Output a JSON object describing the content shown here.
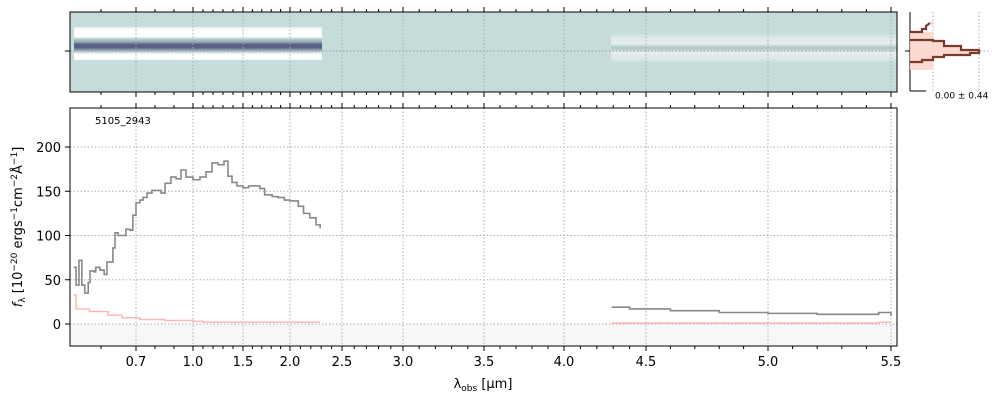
{
  "chart_data": {
    "type": "line",
    "label": "5105_2943",
    "xlabel_main": "λ",
    "xlabel_sub": "obs",
    "xlabel_unit": " [μm]",
    "ylabel": "f_λ [10^-20 ergs^-1cm^-2Å^-1]",
    "ylabel_parts": {
      "f": "f",
      "lam": "λ",
      "a": " [10",
      "e1": "−20",
      "b": " ergs",
      "e2": "−1",
      "c": "cm",
      "e3": "−2",
      "d": "Å",
      "e4": "−1",
      "e": "]"
    },
    "xticks": [
      0.7,
      1.0,
      1.5,
      2.0,
      2.5,
      3.0,
      3.5,
      4.0,
      4.5,
      5.0,
      5.5
    ],
    "xtick_labels": [
      "0.7",
      "1.0",
      "1.5",
      "2.0",
      "2.5",
      "3.0",
      "3.5",
      "4.0",
      "4.5",
      "5.0",
      "5.5"
    ],
    "yticks": [
      0,
      50,
      100,
      150,
      200
    ],
    "ytick_labels": [
      "0",
      "50",
      "100",
      "150",
      "200"
    ],
    "ylim": [
      -25,
      244
    ],
    "xlim": [
      0.545,
      5.52
    ],
    "grid": true,
    "series": [
      {
        "name": "flux",
        "color": "#888888",
        "segments": [
          [
            [
              0.553,
              64
            ],
            [
              0.557,
              44
            ],
            [
              0.562,
              72
            ],
            [
              0.567,
              44
            ],
            [
              0.572,
              35
            ],
            [
              0.578,
              47
            ],
            [
              0.581,
              60
            ],
            [
              0.588,
              59
            ],
            [
              0.591,
              64
            ],
            [
              0.598,
              61
            ],
            [
              0.609,
              56
            ],
            [
              0.617,
              70
            ],
            [
              0.626,
              70
            ],
            [
              0.634,
              86
            ],
            [
              0.64,
              103
            ],
            [
              0.649,
              100
            ],
            [
              0.66,
              100
            ],
            [
              0.671,
              107
            ],
            [
              0.683,
              106
            ],
            [
              0.691,
              123
            ],
            [
              0.7,
              137
            ],
            [
              0.721,
              140
            ],
            [
              0.737,
              143
            ],
            [
              0.758,
              148
            ],
            [
              0.784,
              151
            ],
            [
              0.816,
              151
            ],
            [
              0.832,
              148
            ],
            [
              0.853,
              159
            ],
            [
              0.884,
              166
            ],
            [
              0.911,
              164
            ],
            [
              0.937,
              174
            ],
            [
              0.963,
              166
            ],
            [
              1.0,
              163
            ],
            [
              1.07,
              166
            ],
            [
              1.13,
              172
            ],
            [
              1.19,
              182
            ],
            [
              1.25,
              180
            ],
            [
              1.31,
              184
            ],
            [
              1.35,
              167
            ],
            [
              1.39,
              160
            ],
            [
              1.44,
              156
            ],
            [
              1.5,
              154
            ],
            [
              1.56,
              156
            ],
            [
              1.62,
              156
            ],
            [
              1.68,
              153
            ],
            [
              1.73,
              146
            ],
            [
              1.81,
              144
            ],
            [
              1.87,
              143
            ],
            [
              1.94,
              140
            ],
            [
              2.0,
              139
            ],
            [
              2.08,
              133
            ],
            [
              2.13,
              125
            ],
            [
              2.19,
              120
            ],
            [
              2.25,
              112
            ],
            [
              2.29,
              108
            ]
          ],
          [
            [
              4.29,
              19
            ],
            [
              4.4,
              17
            ],
            [
              4.6,
              15
            ],
            [
              4.8,
              13
            ],
            [
              5.0,
              12
            ],
            [
              5.2,
              11
            ],
            [
              5.35,
              11
            ],
            [
              5.45,
              13
            ],
            [
              5.5,
              9
            ]
          ]
        ]
      },
      {
        "name": "error",
        "color": "#ffb3b3",
        "segments": [
          [
            [
              0.553,
              33
            ],
            [
              0.557,
              17
            ],
            [
              0.58,
              14
            ],
            [
              0.62,
              10
            ],
            [
              0.66,
              7
            ],
            [
              0.72,
              5
            ],
            [
              0.85,
              4
            ],
            [
              1.0,
              3
            ],
            [
              1.1,
              2
            ],
            [
              2.29,
              2
            ]
          ],
          [
            [
              4.29,
              1
            ],
            [
              5.3,
              1
            ],
            [
              5.45,
              2
            ],
            [
              5.5,
              3
            ]
          ]
        ]
      }
    ],
    "spectrum2d": {
      "background": "#c5dcdb",
      "trace": "#5a5f86"
    },
    "histogram": {
      "label": "0.00 ± 0.44",
      "color": "#7a3b2e",
      "fill": "#fdd6cc"
    }
  }
}
